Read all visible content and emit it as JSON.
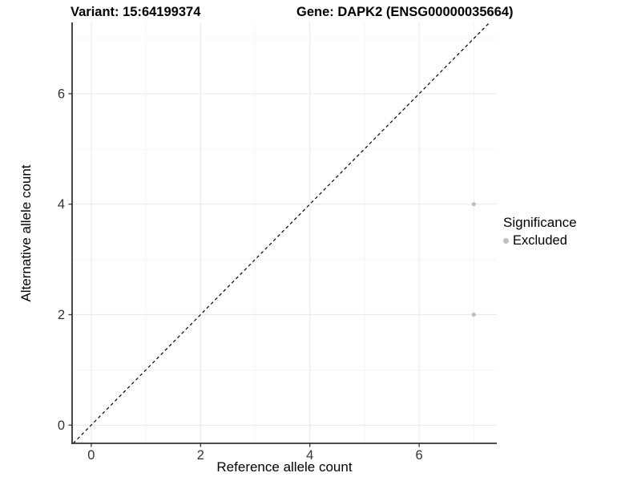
{
  "chart_data": {
    "type": "scatter",
    "title_left": "Variant: 15:64199374",
    "title_right": "Gene: DAPK2 (ENSG00000035664)",
    "xlabel": "Reference allele count",
    "ylabel": "Alternative allele count",
    "xlim": [
      -0.35,
      7.42
    ],
    "ylim": [
      -0.33,
      7.29
    ],
    "x_major_ticks": [
      0,
      2,
      4,
      6
    ],
    "y_major_ticks": [
      0,
      2,
      4,
      6
    ],
    "x_minor_gridlines": [
      1,
      3,
      5,
      7
    ],
    "y_minor_gridlines": [
      1,
      3,
      5,
      7
    ],
    "grid": true,
    "series": [
      {
        "name": "Excluded",
        "color": "#bdbdbd",
        "points": [
          {
            "x": 7,
            "y": 4
          },
          {
            "x": 7,
            "y": 2
          }
        ]
      }
    ],
    "identity_line": {
      "slope": 1,
      "intercept": 0,
      "style": "dashed",
      "color": "#000000"
    },
    "legend": {
      "title": "Significance",
      "position": "right",
      "items": [
        {
          "label": "Excluded",
          "color": "#bdbdbd"
        }
      ]
    },
    "colors": {
      "axis_line": "#333333",
      "tick_label": "#333333",
      "major_grid": "#e9e9e9",
      "minor_grid": "#f2f2f2",
      "background": "#ffffff"
    }
  }
}
